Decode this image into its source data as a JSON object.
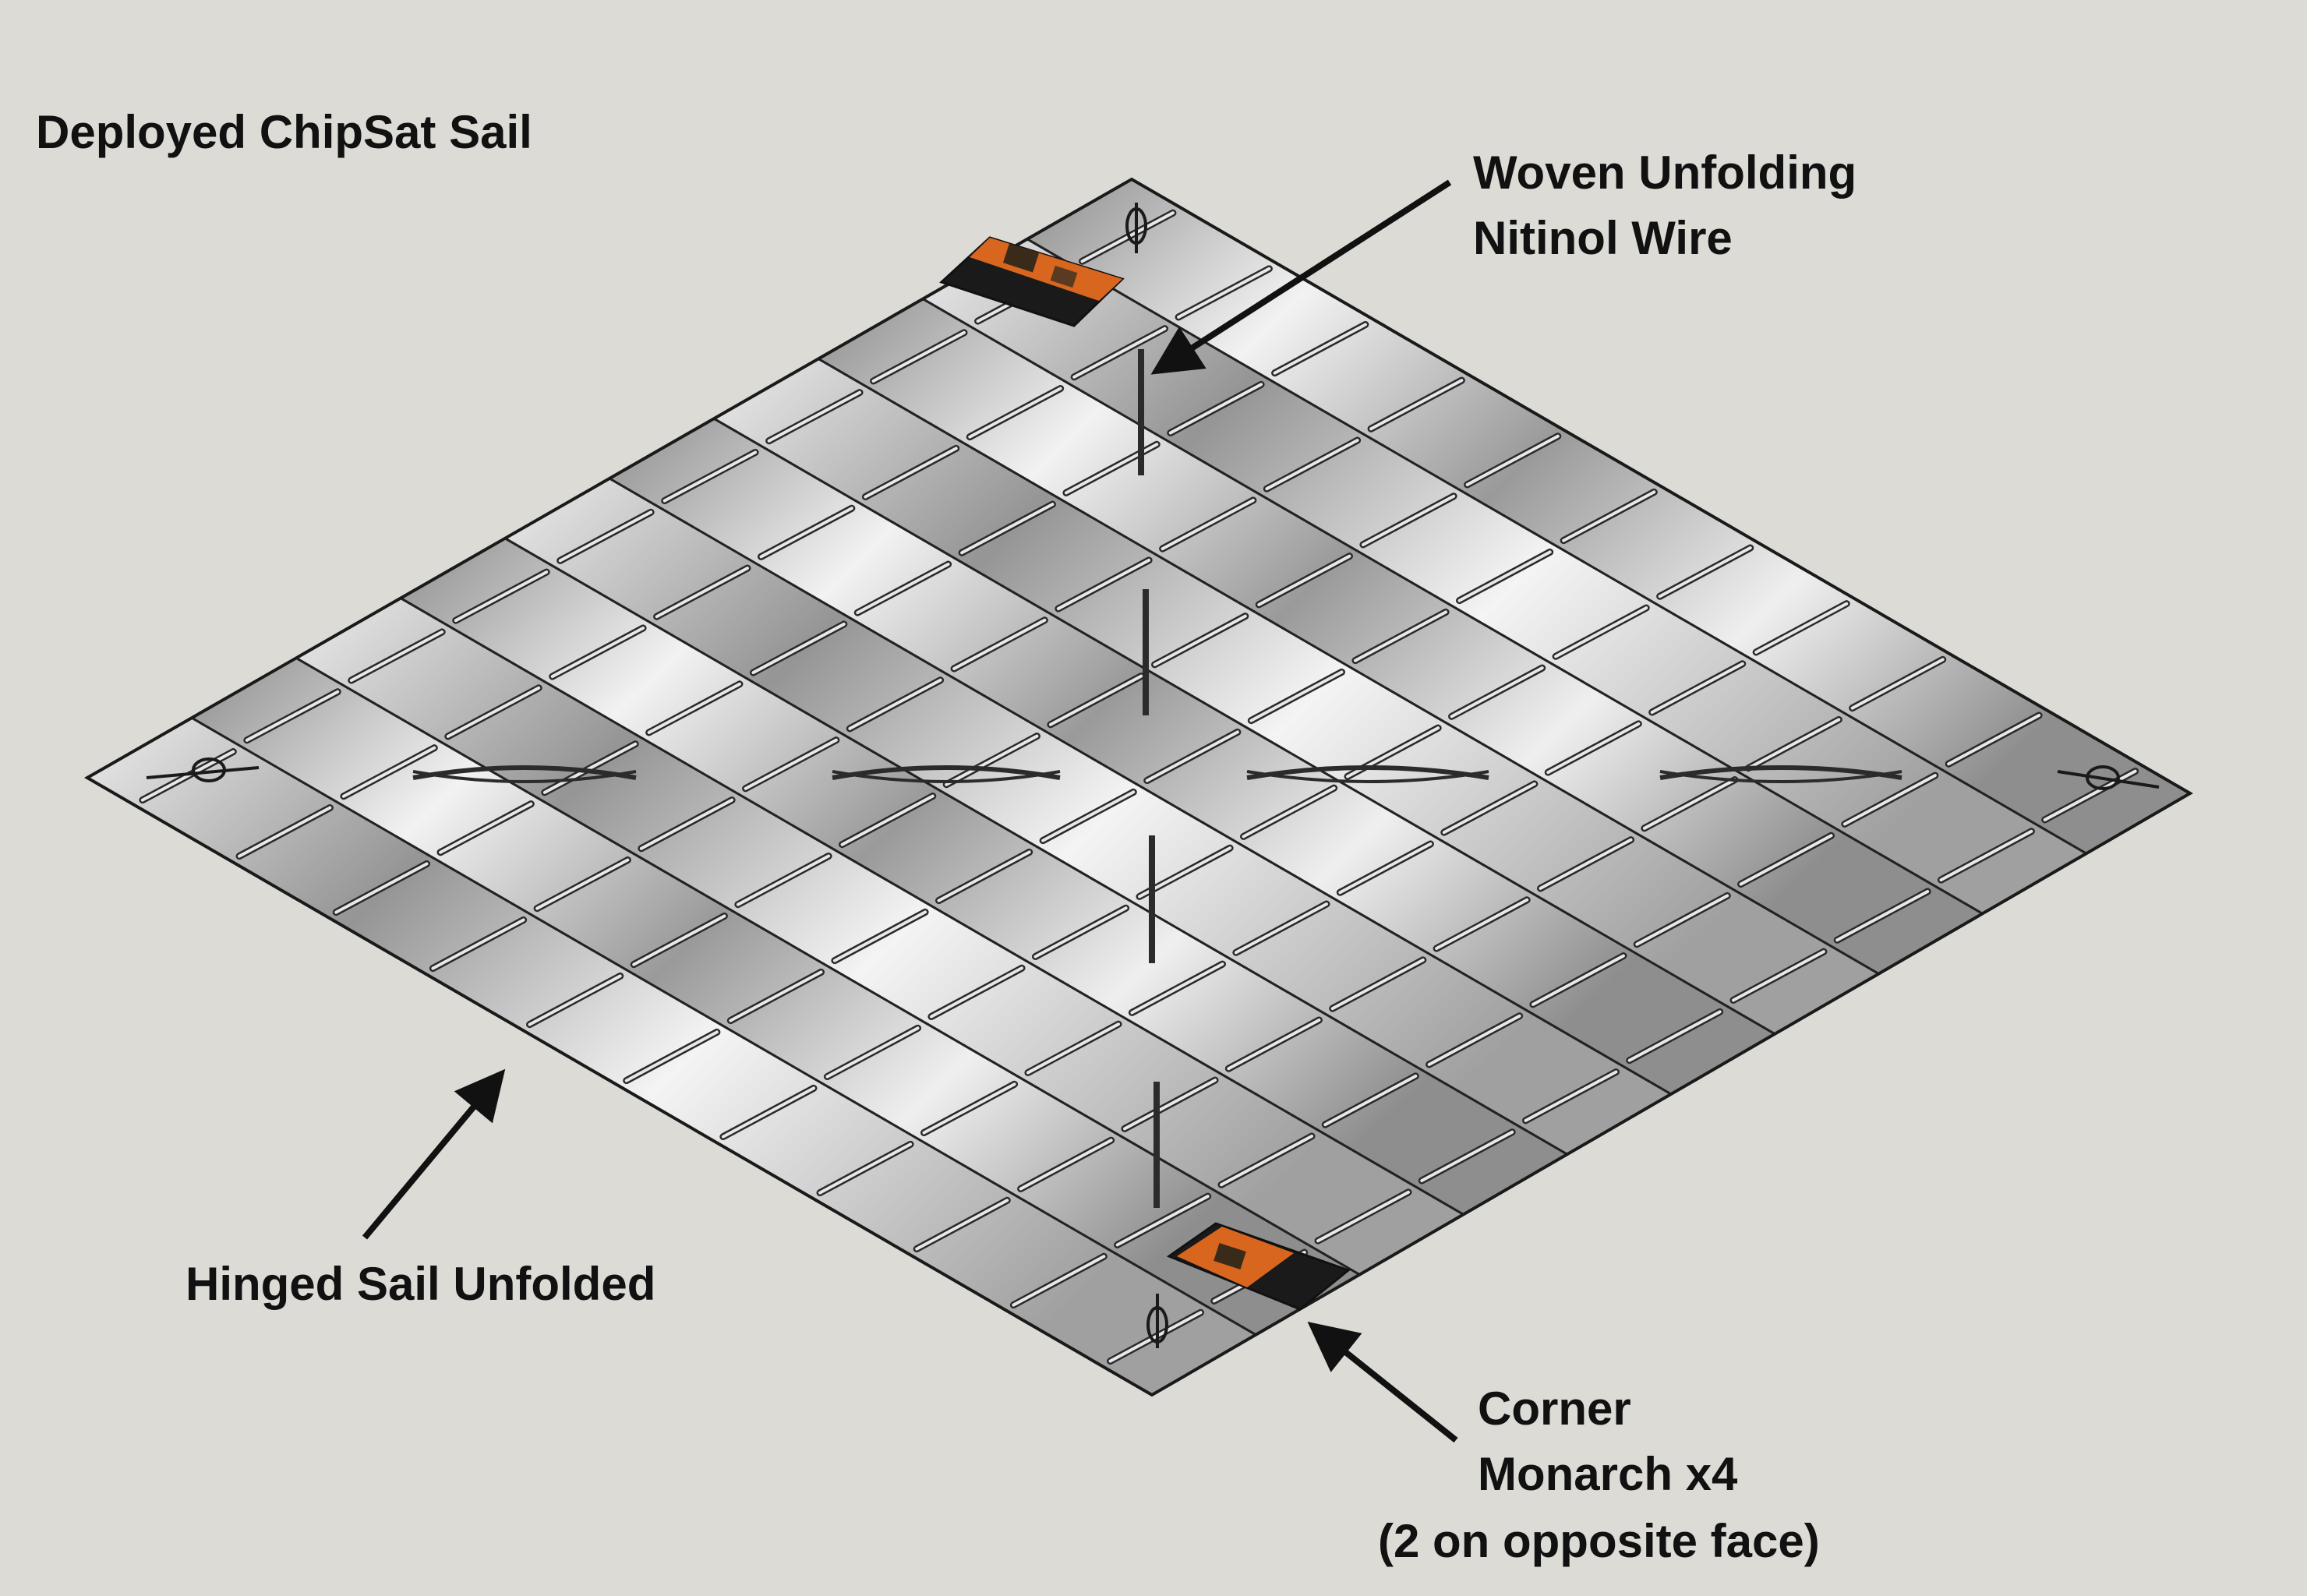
{
  "title": "Deployed ChipSat Sail",
  "labels": {
    "wire_line1": "Woven Unfolding",
    "wire_line2": "Nitinol Wire",
    "sail": "Hinged Sail Unfolded",
    "corner_line1": "Corner",
    "corner_line2": "Monarch x4",
    "corner_line3": "(2 on opposite face)"
  },
  "colors": {
    "background": "#dcdbd6",
    "sail_light": "#f2f2f2",
    "sail_dark": "#8e8e8e",
    "outline": "#1a1a1a",
    "chipsat_orange": "#d9661f",
    "chipsat_panel": "#1c1c1c"
  }
}
